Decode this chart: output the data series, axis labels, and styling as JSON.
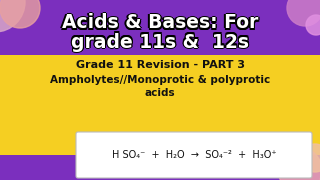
{
  "bg_purple": "#7B2FBE",
  "bg_yellow": "#F5CF22",
  "title_line1": "Acids & Bases: For",
  "title_line2": "grade 11s &  12s",
  "subtitle_line1": "Grade 11 Revision - PART 3",
  "subtitle_line2": "Ampholytes//Monoprotic & polyprotic",
  "subtitle_line3": "acids",
  "equation": "H SO₄⁻  +  H₂O  →  SO₄⁻²  +  H₃O⁺",
  "circle_tl_color": "#D4A0C8",
  "circle_tl2_color": "#E8A0A0",
  "circle_tr_color": "#C879C8",
  "circle_br_color": "#E8A0B0",
  "circle_br2_color": "#F0C0A0",
  "title_color": "#FFFFFF",
  "title_stroke": "#000000",
  "subtitle_color": "#111111",
  "eq_box_color": "#FFFFFF",
  "eq_text_color": "#111111",
  "purple_bottom": "#7B2FBE"
}
